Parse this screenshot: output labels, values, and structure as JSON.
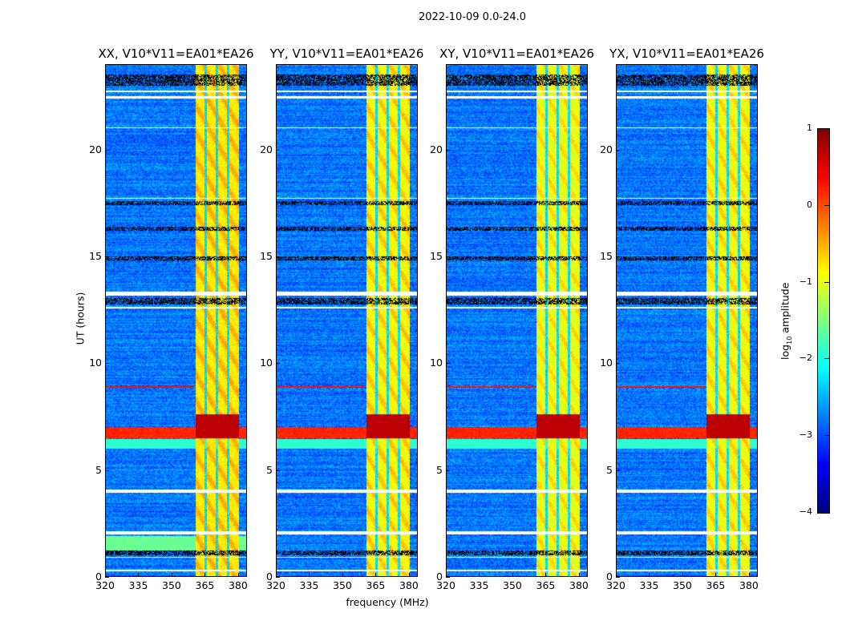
{
  "suptitle": "2022-10-09 0.0-24.0",
  "chart_data": {
    "type": "heatmap",
    "title": "2022-10-09 0.0-24.0",
    "xlabel": "frequency (MHz)",
    "ylabel": "UT (hours)",
    "xlim": [
      320,
      384
    ],
    "ylim": [
      0,
      24
    ],
    "xticks": [
      320,
      335,
      350,
      365,
      380
    ],
    "yticks": [
      0,
      5,
      10,
      15,
      20
    ],
    "colorbar": {
      "label_main": "log",
      "label_sub": "10",
      "label_rest": " amplitude",
      "range": [
        -4,
        1
      ],
      "ticks": [
        1,
        0,
        -1,
        -2,
        -3,
        -4
      ],
      "tick_labels": [
        "1",
        "0",
        "−1",
        "−2",
        "−3",
        "−4"
      ],
      "colormap": "jet"
    },
    "panels": [
      {
        "title": "XX, V10*V11=EA01*EA26",
        "band_level": -0.8
      },
      {
        "title": "YY, V10*V11=EA01*EA26",
        "band_level": -0.9
      },
      {
        "title": "XY, V10*V11=EA01*EA26",
        "band_level": -1.0
      },
      {
        "title": "YX, V10*V11=EA01*EA26",
        "band_level": -0.95
      }
    ],
    "background_level": -2.8,
    "rfi_band_mhz": [
      360.7,
      380.3
    ],
    "band_gaps_mhz": [
      365.5,
      370.5,
      375.5
    ],
    "strong_rfi_hours": [
      6.5,
      7.0
    ],
    "flagged_hours": [
      [
        0.25,
        0.32
      ],
      [
        0.9,
        0.95
      ],
      [
        2.0,
        2.15
      ],
      [
        3.95,
        4.1
      ],
      [
        12.55,
        12.65
      ],
      [
        13.15,
        13.35
      ],
      [
        17.7,
        17.75
      ],
      [
        21.0,
        21.05
      ],
      [
        22.4,
        22.5
      ],
      [
        22.7,
        22.75
      ]
    ],
    "dark_hours": [
      [
        1.0,
        1.25
      ],
      [
        12.75,
        13.05
      ],
      [
        23.0,
        23.5
      ],
      [
        17.4,
        17.6
      ],
      [
        14.8,
        15.0
      ],
      [
        16.2,
        16.4
      ]
    ]
  }
}
